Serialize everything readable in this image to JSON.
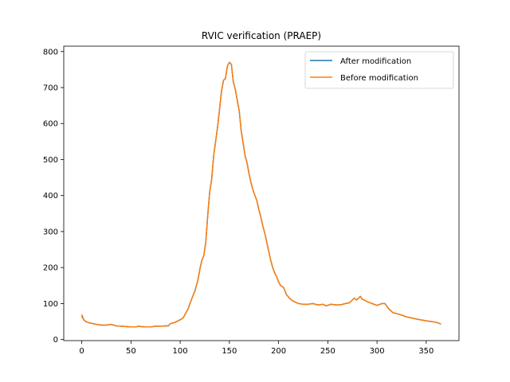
{
  "chart_data": {
    "type": "line",
    "title": "RVIC verification (PRAEP)",
    "xlabel": "",
    "ylabel": "",
    "xlim": [
      -18.3,
      383.3
    ],
    "ylim": [
      -3,
      815
    ],
    "xticks": [
      0,
      50,
      100,
      150,
      200,
      250,
      300,
      350
    ],
    "yticks": [
      0,
      100,
      200,
      300,
      400,
      500,
      600,
      700,
      800
    ],
    "grid": false,
    "legend_position": "top-right",
    "x": [
      0,
      2,
      4,
      6,
      8,
      10,
      15,
      20,
      25,
      30,
      35,
      40,
      45,
      50,
      55,
      58,
      60,
      65,
      70,
      75,
      80,
      85,
      88,
      90,
      95,
      100,
      103,
      105,
      108,
      110,
      112,
      115,
      118,
      120,
      122,
      124,
      126,
      128,
      130,
      132,
      134,
      136,
      138,
      140,
      142,
      144,
      146,
      148,
      150,
      152,
      154,
      156,
      158,
      160,
      162,
      164,
      166,
      168,
      170,
      172,
      174,
      176,
      178,
      180,
      182,
      184,
      186,
      188,
      190,
      192,
      194,
      196,
      198,
      200,
      202,
      205,
      208,
      211,
      214,
      217,
      220,
      225,
      230,
      235,
      240,
      245,
      248,
      250,
      253,
      256,
      260,
      264,
      268,
      272,
      275,
      277,
      279,
      281,
      283,
      285,
      287,
      290,
      295,
      300,
      305,
      308,
      312,
      316,
      320,
      325,
      330,
      340,
      350,
      355,
      360,
      365
    ],
    "series": [
      {
        "name": "After modification",
        "color": "#1f77b4",
        "y": [
          65,
          55,
          50,
          48,
          46,
          45,
          42,
          40,
          40,
          42,
          38,
          37,
          36,
          35,
          35,
          37,
          36,
          35,
          35,
          37,
          37,
          38,
          38,
          44,
          48,
          55,
          60,
          70,
          85,
          100,
          115,
          135,
          165,
          195,
          220,
          233,
          270,
          345,
          410,
          445,
          510,
          550,
          590,
          640,
          690,
          720,
          725,
          760,
          770,
          765,
          715,
          695,
          665,
          635,
          580,
          545,
          510,
          490,
          460,
          435,
          415,
          400,
          385,
          360,
          340,
          315,
          295,
          270,
          245,
          220,
          200,
          185,
          175,
          160,
          150,
          145,
          125,
          115,
          108,
          104,
          100,
          98,
          98,
          100,
          96,
          98,
          94,
          95,
          98,
          97,
          96,
          97,
          100,
          102,
          110,
          115,
          110,
          114,
          120,
          112,
          110,
          105,
          100,
          95,
          100,
          100,
          85,
          75,
          72,
          68,
          63,
          57,
          52,
          50,
          48,
          43
        ]
      },
      {
        "name": "Before modification",
        "color": "#ff7f0e",
        "y": [
          70,
          55,
          50,
          48,
          46,
          45,
          42,
          40,
          40,
          42,
          38,
          37,
          36,
          35,
          35,
          37,
          36,
          35,
          35,
          37,
          37,
          38,
          38,
          44,
          48,
          55,
          60,
          70,
          85,
          100,
          115,
          135,
          165,
          195,
          220,
          233,
          270,
          345,
          410,
          445,
          510,
          550,
          590,
          640,
          690,
          720,
          725,
          760,
          770,
          765,
          715,
          695,
          665,
          635,
          580,
          545,
          510,
          490,
          460,
          435,
          415,
          400,
          385,
          360,
          340,
          315,
          295,
          270,
          245,
          220,
          200,
          185,
          175,
          160,
          150,
          145,
          125,
          115,
          108,
          104,
          100,
          98,
          98,
          100,
          96,
          98,
          94,
          95,
          98,
          97,
          96,
          97,
          100,
          102,
          110,
          115,
          110,
          114,
          120,
          112,
          110,
          105,
          100,
          95,
          100,
          100,
          85,
          75,
          72,
          68,
          63,
          57,
          52,
          50,
          48,
          43
        ]
      }
    ]
  }
}
